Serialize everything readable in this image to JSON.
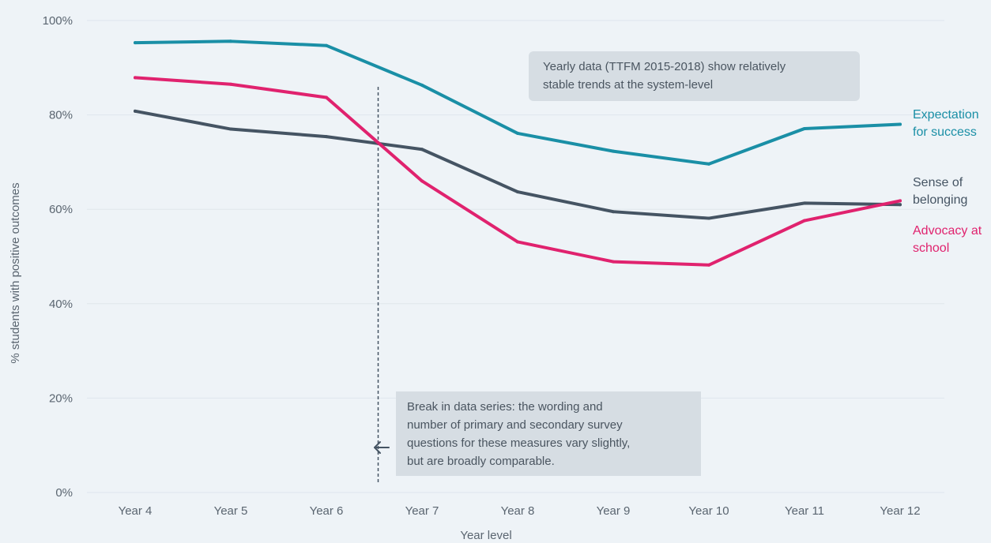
{
  "chart_data": {
    "type": "line",
    "title": "",
    "xlabel": "Year level",
    "ylabel": "% students with positive outcomes",
    "categories": [
      "Year 4",
      "Year 5",
      "Year 6",
      "Year 7",
      "Year 8",
      "Year 9",
      "Year 10",
      "Year 11",
      "Year 12"
    ],
    "ylim": [
      0,
      100
    ],
    "yticks": [
      0,
      20,
      40,
      60,
      80,
      100
    ],
    "ytick_labels": [
      "0%",
      "20%",
      "40%",
      "60%",
      "80%",
      "100%"
    ],
    "grid": true,
    "series": [
      {
        "name": "Expectation for success",
        "label_lines": [
          "Expectation",
          "for success"
        ],
        "color": "#1a8fa6",
        "values": [
          95.3,
          95.6,
          94.7,
          86.3,
          76.1,
          72.3,
          69.6,
          77.1,
          78.0
        ]
      },
      {
        "name": "Sense of belonging",
        "label_lines": [
          "Sense of",
          "belonging"
        ],
        "color": "#455463",
        "values": [
          80.8,
          77.0,
          75.4,
          72.7,
          63.7,
          59.5,
          58.1,
          61.3,
          61.0
        ]
      },
      {
        "name": "Advocacy at school",
        "label_lines": [
          "Advocacy at",
          "school"
        ],
        "color": "#e0226e",
        "values": [
          87.9,
          86.5,
          83.7,
          66.0,
          53.1,
          48.9,
          48.2,
          57.6,
          61.8
        ]
      }
    ],
    "break_between": [
      "Year 6",
      "Year 7"
    ],
    "annotations": [
      {
        "id": "yearly",
        "lines": [
          "Yearly data (TTFM 2015-2018) show relatively",
          "stable trends at the system-level"
        ]
      },
      {
        "id": "break",
        "lines": [
          "Break in data series: the wording and",
          "number of primary and secondary survey",
          "questions for these measures vary slightly,",
          "but are broadly comparable."
        ]
      }
    ]
  }
}
